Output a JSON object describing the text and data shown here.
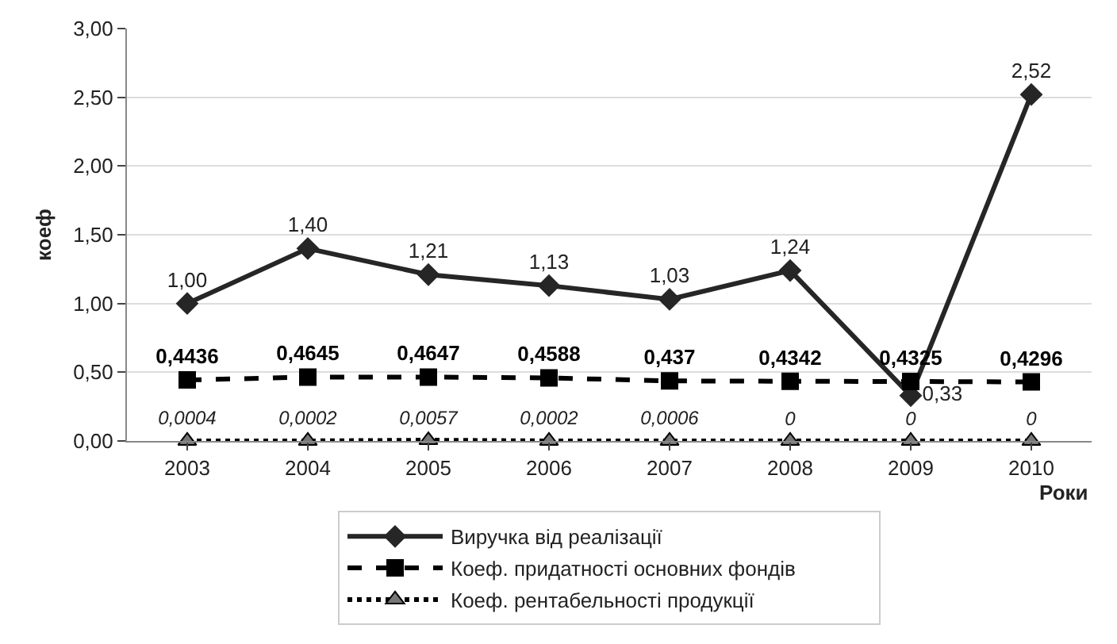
{
  "chart_data": {
    "type": "line",
    "xlabel": "Роки",
    "ylabel": "коеф",
    "categories": [
      "2003",
      "2004",
      "2005",
      "2006",
      "2007",
      "2008",
      "2009",
      "2010"
    ],
    "series": [
      {
        "name": "Виручка від реалізації",
        "color": "#262626",
        "marker": "diamond",
        "line_style": "solid",
        "values": [
          1.0,
          1.4,
          1.21,
          1.13,
          1.03,
          1.24,
          0.33,
          2.52
        ],
        "value_labels": [
          "1,00",
          "1,40",
          "1,21",
          "1,13",
          "1,03",
          "1,24",
          "0,33",
          "2,52"
        ]
      },
      {
        "name": "Коеф. придатності основних фондів",
        "color": "#000000",
        "marker": "square",
        "line_style": "dashed",
        "values": [
          0.4436,
          0.4645,
          0.4647,
          0.4588,
          0.437,
          0.4342,
          0.4325,
          0.4296
        ],
        "value_labels": [
          "0,4436",
          "0,4645",
          "0,4647",
          "0,4588",
          "0,437",
          "0,4342",
          "0,4325",
          "0,4296"
        ]
      },
      {
        "name": "Коеф. рентабельності продукції",
        "color": "#000000",
        "marker": "triangle",
        "line_style": "dotted",
        "values": [
          0.0004,
          0.0002,
          0.0057,
          0.0002,
          0.0006,
          0,
          0,
          0
        ],
        "value_labels": [
          "0,0004",
          "0,0002",
          "0,0057",
          "0,0002",
          "0,0006",
          "0",
          "0",
          "0"
        ]
      }
    ],
    "ylim": [
      0,
      3
    ],
    "yticks": [
      {
        "value": 0,
        "label": "0,00"
      },
      {
        "value": 0.5,
        "label": "0,50"
      },
      {
        "value": 1,
        "label": "1,00"
      },
      {
        "value": 1.5,
        "label": "1,50"
      },
      {
        "value": 2,
        "label": "2,00"
      },
      {
        "value": 2.5,
        "label": "2,50"
      },
      {
        "value": 3,
        "label": "3,00"
      }
    ],
    "grid": "y",
    "legend": "bottom"
  }
}
